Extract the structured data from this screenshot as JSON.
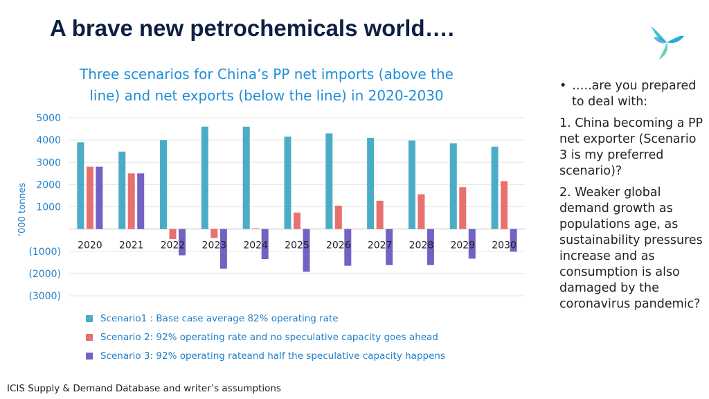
{
  "slide": {
    "title": "A brave new petrochemicals world….",
    "source": "ICIS Supply & Demand Database and writer’s assumptions"
  },
  "colors": {
    "title": "#0e1f43",
    "chart_title": "#1f8fd6",
    "scenario1": "#4bacc6",
    "scenario2": "#e8706f",
    "scenario3": "#7361c4"
  },
  "logo": {
    "icon": "icis-logo-icon"
  },
  "bullets": {
    "intro": "…..are you prepared to deal with:",
    "items": [
      "1. China becoming a PP net exporter (Scenario 3 is my preferred scenario)?",
      "2. Weaker global demand growth as populations age, as sustainability pressures increase and as consumption is also damaged by the coronavirus pandemic?"
    ]
  },
  "chart_data": {
    "type": "bar",
    "title": "Three scenarios for China’s PP net imports (above the line) and net exports (below the line) in 2020-2030",
    "ylabel": "‘000 tonnes",
    "xlabel": "",
    "ylim": [
      -3000,
      5000
    ],
    "yticks": [
      -3000,
      -2000,
      -1000,
      0,
      1000,
      2000,
      3000,
      4000,
      5000
    ],
    "ytick_labels": [
      "(3000)",
      "(2000)",
      "(1000)",
      "",
      "1000",
      "2000",
      "3000",
      "4000",
      "5000"
    ],
    "categories": [
      "2020",
      "2021",
      "2022",
      "2023",
      "2024",
      "2025",
      "2026",
      "2027",
      "2028",
      "2029",
      "2030"
    ],
    "grid": true,
    "legend_position": "bottom",
    "series": [
      {
        "name": "Scenario1 : Base case average 82% operating rate",
        "color": "#4bacc6",
        "values": [
          3900,
          3480,
          4000,
          4600,
          4600,
          4150,
          4300,
          4100,
          3980,
          3850,
          3700
        ]
      },
      {
        "name": "Scenario 2: 92% operating rate and no speculative capacity goes ahead",
        "color": "#e8706f",
        "values": [
          2800,
          2500,
          -450,
          -400,
          30,
          740,
          1050,
          1270,
          1560,
          1880,
          2150
        ]
      },
      {
        "name": "Scenario 3: 92% operating rateand half the speculative capacity happens",
        "color": "#7361c4",
        "values": [
          2800,
          2500,
          -1180,
          -1780,
          -1350,
          -1920,
          -1650,
          -1620,
          -1620,
          -1330,
          -1020
        ]
      }
    ]
  }
}
